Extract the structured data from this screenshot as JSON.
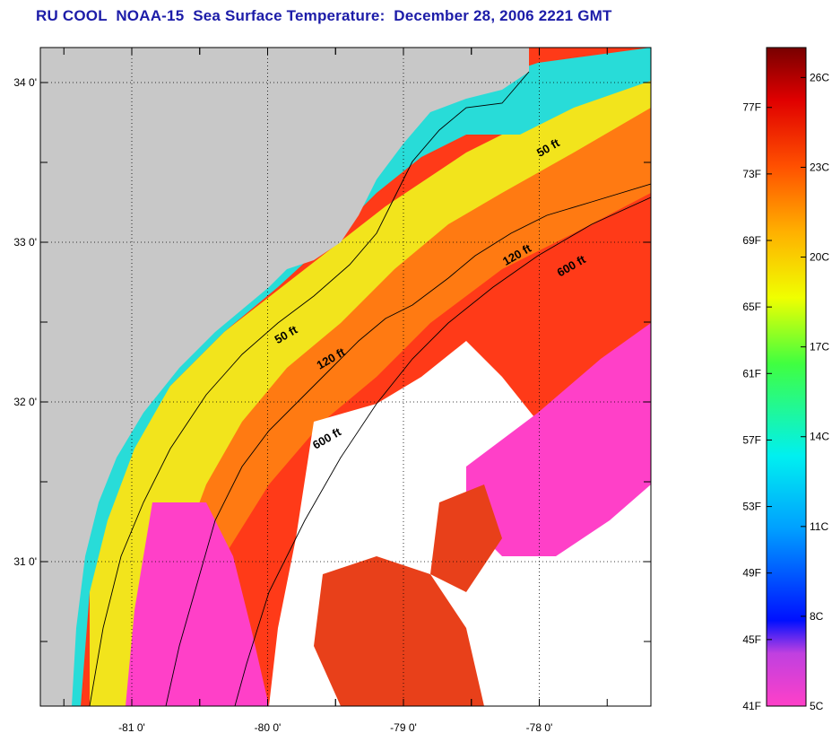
{
  "title": "RU COOL  NOAA-15  Sea Surface Temperature:  December 28, 2006 2221 GMT",
  "map": {
    "lat_labels": [
      {
        "lat": 34.0,
        "text": "34 0'"
      },
      {
        "lat": 33.0,
        "text": "33 0'"
      },
      {
        "lat": 32.0,
        "text": "32 0'"
      },
      {
        "lat": 31.0,
        "text": "31 0'"
      }
    ],
    "lon_labels": [
      {
        "lon": -81.0,
        "text": "-81 0'"
      },
      {
        "lon": -80.0,
        "text": "-80 0'"
      },
      {
        "lon": -79.0,
        "text": "-79 0'"
      },
      {
        "lon": -78.0,
        "text": "-78 0'"
      }
    ],
    "isobath_labels": [
      {
        "text": "50 ft",
        "lon": -77.92,
        "lat": 33.57
      },
      {
        "text": "120 ft",
        "lon": -78.15,
        "lat": 32.9
      },
      {
        "text": "600 ft",
        "lon": -77.75,
        "lat": 32.83
      },
      {
        "text": "50 ft",
        "lon": -79.85,
        "lat": 32.4
      },
      {
        "text": "120 ft",
        "lon": -79.52,
        "lat": 32.25
      },
      {
        "text": "600 ft",
        "lon": -79.55,
        "lat": 31.75
      }
    ],
    "colors": {
      "land": "#c8c8c8",
      "frame": "#000000"
    }
  },
  "colorbar": {
    "fahrenheit_labels": [
      "77F",
      "73F",
      "69F",
      "65F",
      "61F",
      "57F",
      "53F",
      "49F",
      "45F",
      "41F"
    ],
    "celsius_labels": [
      "26C",
      "23C",
      "20C",
      "17C",
      "14C",
      "11C",
      "8C",
      "5C"
    ],
    "range_c": [
      5,
      27
    ]
  }
}
